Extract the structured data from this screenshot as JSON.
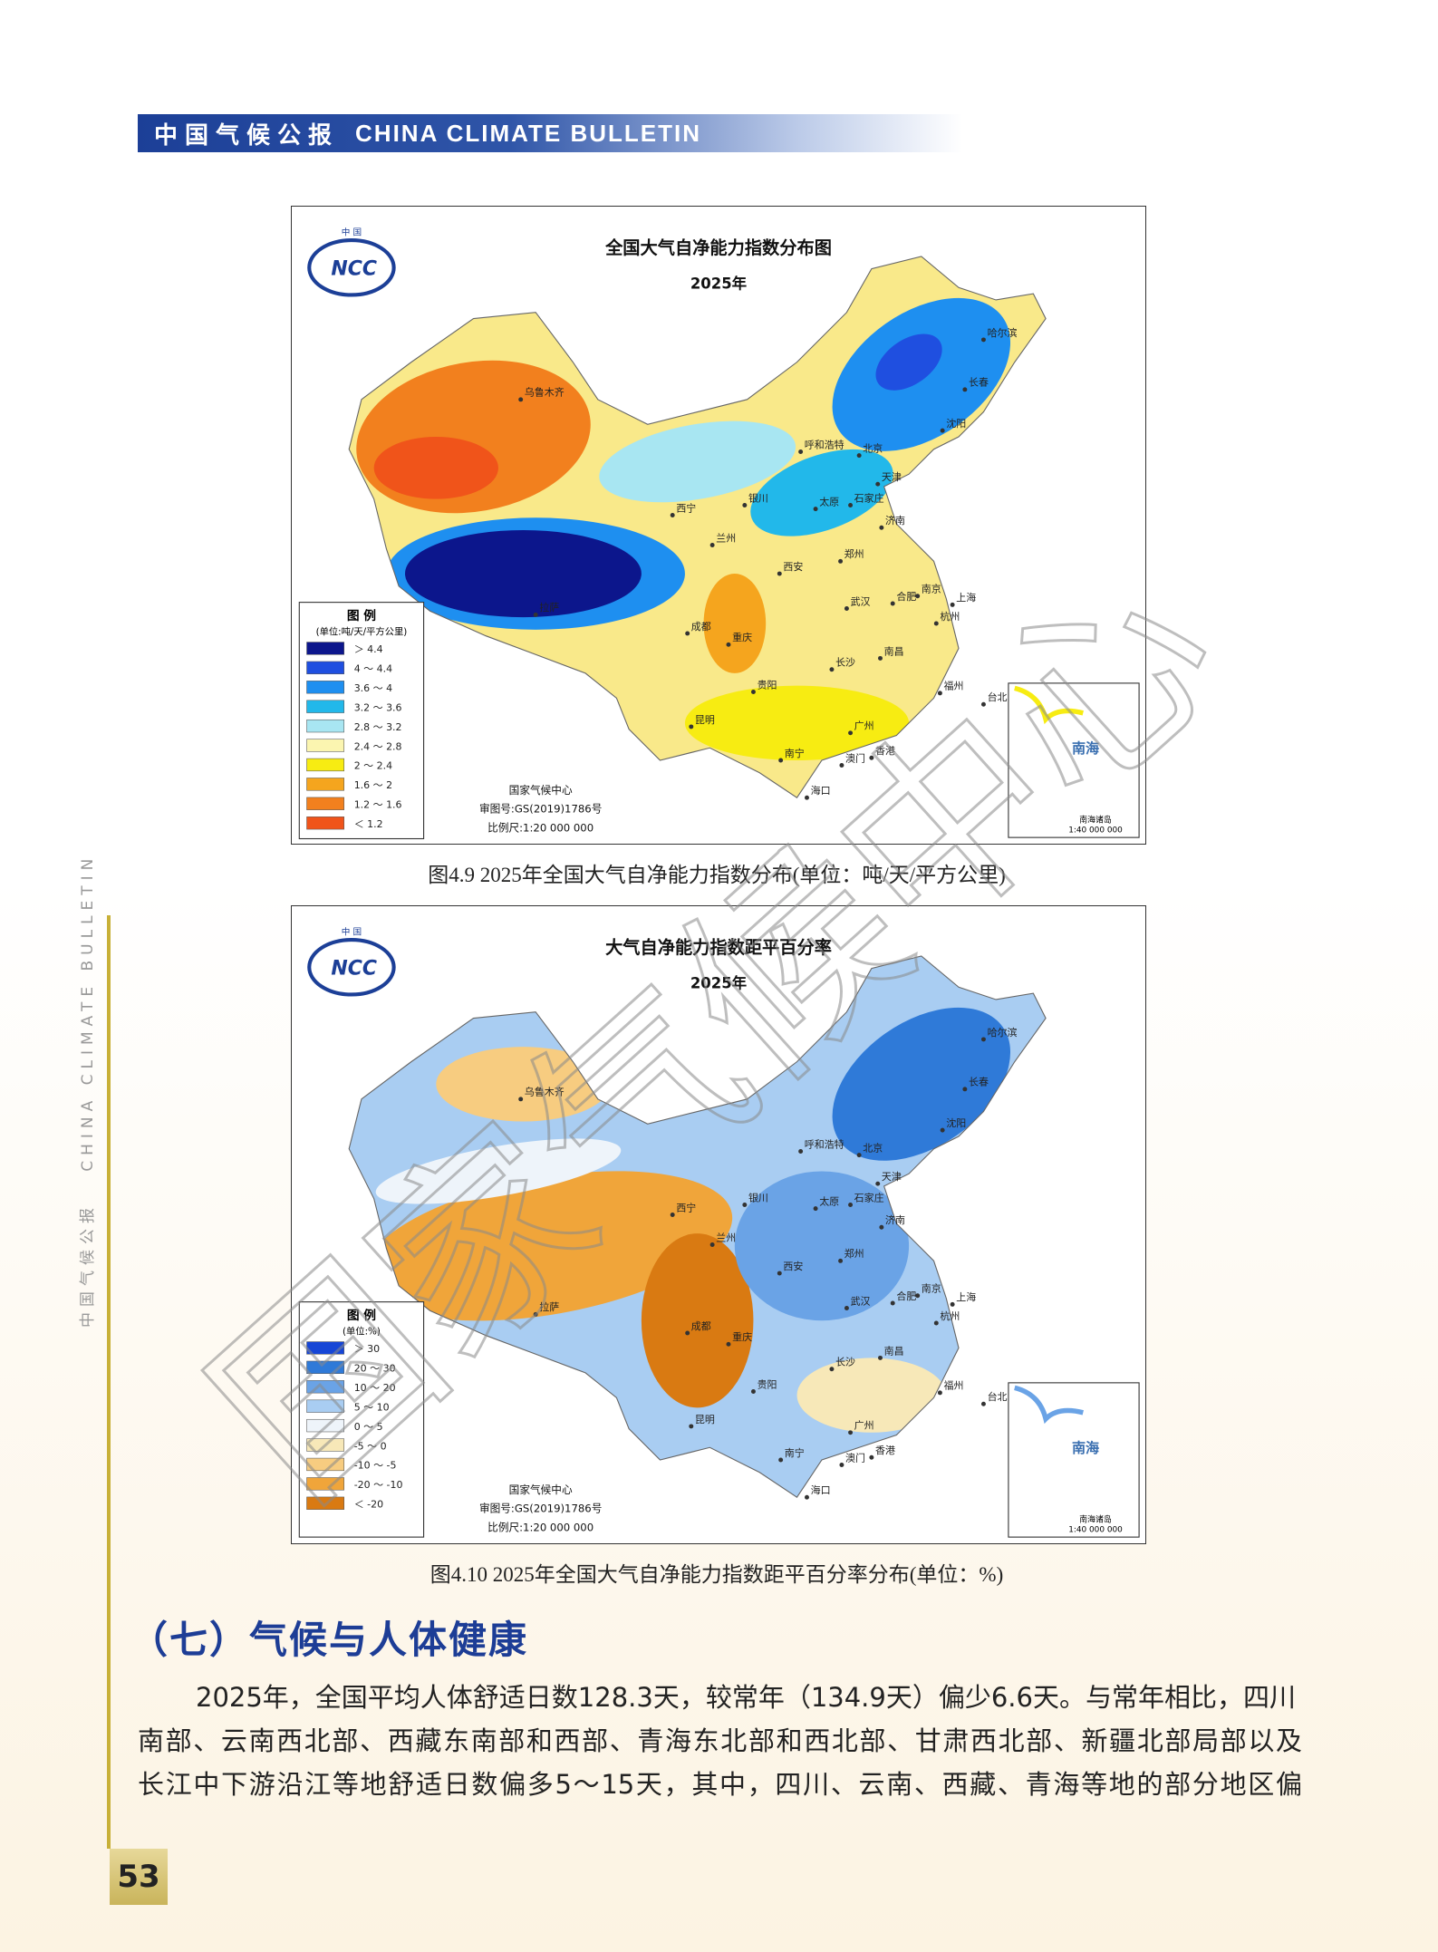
{
  "header": {
    "title_cn": "中国气候公报",
    "title_en": "CHINA CLIMATE BULLETIN"
  },
  "map_labels": {
    "logo_top": "中 国",
    "logo": "NCC",
    "cities": [
      "乌鲁木齐",
      "哈尔滨",
      "长春",
      "沈阳",
      "呼和浩特",
      "北京",
      "天津",
      "石家庄",
      "太原",
      "济南",
      "银川",
      "西宁",
      "兰州",
      "西安",
      "郑州",
      "南京",
      "合肥",
      "上海",
      "杭州",
      "武汉",
      "成都",
      "重庆",
      "拉萨",
      "长沙",
      "南昌",
      "福州",
      "台北",
      "贵阳",
      "昆明",
      "南宁",
      "广州",
      "香港",
      "澳门",
      "海口"
    ],
    "inset": [
      "南海",
      "南海诸岛",
      "1:40 000 000"
    ],
    "credit": [
      "国家气候中心",
      "审图号:GS(2019)1786号",
      "比例尺:1:20 000 000"
    ]
  },
  "figures": [
    {
      "title": "全国大气自净能力指数分布图",
      "year": "2025年",
      "legend": {
        "title": "图 例",
        "unit": "(单位:吨/天/平方公里)",
        "items": [
          {
            "label": "＞ 4.4",
            "color": "#0c168c"
          },
          {
            "label": "4 ～ 4.4",
            "color": "#1f4fe0"
          },
          {
            "label": "3.6 ～ 4",
            "color": "#1e8ff0"
          },
          {
            "label": "3.2 ～ 3.6",
            "color": "#22b8ea"
          },
          {
            "label": "2.8 ～ 3.2",
            "color": "#a8e6f2"
          },
          {
            "label": "2.4 ～ 2.8",
            "color": "#fbf5b0"
          },
          {
            "label": "2 ～ 2.4",
            "color": "#f7ec12"
          },
          {
            "label": "1.6 ～ 2",
            "color": "#f5a51e"
          },
          {
            "label": "1.2 ～ 1.6",
            "color": "#f2801e"
          },
          {
            "label": "＜ 1.2",
            "color": "#f0541a"
          }
        ]
      },
      "caption": "图4.9  2025年全国大气自净能力指数分布(单位：吨/天/平方公里)"
    },
    {
      "title": "大气自净能力指数距平百分率",
      "year": "2025年",
      "legend": {
        "title": "图 例",
        "unit": "(单位:%)",
        "items": [
          {
            "label": "＞ 30",
            "color": "#1646d6"
          },
          {
            "label": "20 ～ 30",
            "color": "#2f7ad8"
          },
          {
            "label": "10 ～ 20",
            "color": "#6aa3e6"
          },
          {
            "label": "5 ～ 10",
            "color": "#a9cdf2"
          },
          {
            "label": "0 ～ 5",
            "color": "#eef4fa"
          },
          {
            "label": "-5 ～ 0",
            "color": "#f7e8b8"
          },
          {
            "label": "-10 ～ -5",
            "color": "#f7cc80"
          },
          {
            "label": "-20 ～ -10",
            "color": "#f0a53a"
          },
          {
            "label": "＜ -20",
            "color": "#d97a12"
          }
        ]
      },
      "caption": "图4.10  2025年全国大气自净能力指数距平百分率分布(单位：%)"
    }
  ],
  "section": {
    "heading": "（七）气候与人体健康",
    "paragraph": [
      "2025年，全国平均人体舒适日数128.3天，较常年（134.9天）偏少6.6天。与常年相比，四川",
      "南部、云南西北部、西藏东南部和西部、青海东北部和西北部、甘肃西北部、新疆北部局部以及",
      "长江中下游沿江等地舒适日数偏多5～15天，其中，四川、云南、西藏、青海等地的部分地区偏"
    ]
  },
  "side_text": {
    "cn": "中国气候公报",
    "en": "CHINA CLIMATE BULLETIN"
  },
  "page_number": "53",
  "watermark": "国家气候中心"
}
